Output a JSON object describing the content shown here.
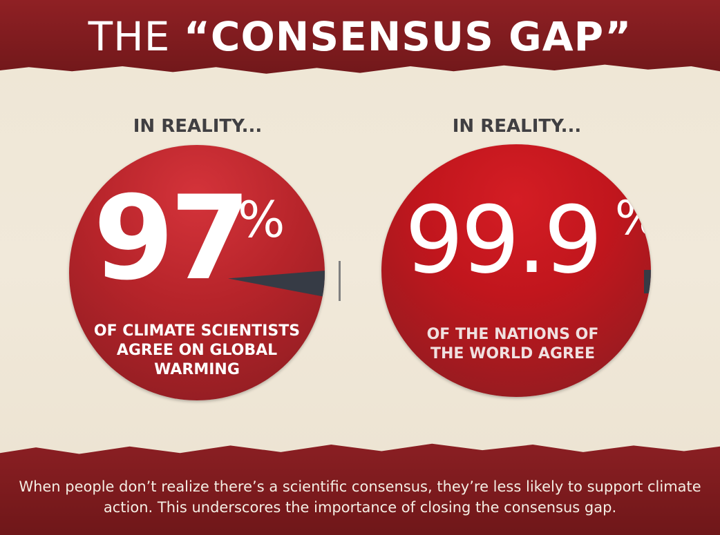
{
  "header": {
    "title_prefix": "THE",
    "title_main": "“CONSENSUS GAP”"
  },
  "left_panel": {
    "heading": "IN REALITY...",
    "value": "97",
    "unit": "%",
    "fill_fraction": 0.97,
    "caption": "OF CLIMATE SCIENTISTS AGREE ON GLOBAL WARMING"
  },
  "right_panel": {
    "heading": "IN REALITY...",
    "value": "99.9",
    "unit": "%",
    "fill_fraction": 0.999,
    "caption": "OF THE NATIONS OF THE WORLD AGREE"
  },
  "footer": {
    "text": "When people don’t realize there’s a scientific consensus, they’re less likely to support climate action. This underscores the importance of closing the consensus gap."
  },
  "colors": {
    "banner": "#8f2024",
    "circle": "#b6242a",
    "slice": "#363b45",
    "background": "#eee6d5"
  }
}
